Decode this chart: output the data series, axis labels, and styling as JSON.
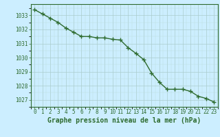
{
  "title": "Graphe pression niveau de la mer (hPa)",
  "x_values": [
    0,
    1,
    2,
    3,
    4,
    5,
    6,
    7,
    8,
    9,
    10,
    11,
    12,
    13,
    14,
    15,
    16,
    17,
    18,
    19,
    20,
    21,
    22,
    23
  ],
  "y_values": [
    1033.4,
    1033.1,
    1032.8,
    1032.5,
    1032.1,
    1031.8,
    1031.5,
    1031.5,
    1031.4,
    1031.4,
    1031.3,
    1031.25,
    1030.7,
    1030.3,
    1029.85,
    1028.9,
    1028.25,
    1027.75,
    1027.75,
    1027.75,
    1027.6,
    1027.25,
    1027.1,
    1026.85
  ],
  "line_color": "#2d6a2d",
  "marker": "+",
  "marker_size": 4,
  "linewidth": 1.0,
  "background_color": "#cceeff",
  "grid_major_color": "#aacccc",
  "grid_minor_color": "#bbdddd",
  "ylim_min": 1026.5,
  "ylim_max": 1033.8,
  "xlim_min": -0.5,
  "xlim_max": 23.5,
  "ytick_values": [
    1027,
    1028,
    1029,
    1030,
    1031,
    1032,
    1033
  ],
  "xtick_values": [
    0,
    1,
    2,
    3,
    4,
    5,
    6,
    7,
    8,
    9,
    10,
    11,
    12,
    13,
    14,
    15,
    16,
    17,
    18,
    19,
    20,
    21,
    22,
    23
  ],
  "tick_color": "#2d6a2d",
  "label_color": "#2d6a2d",
  "title_fontsize": 7,
  "tick_fontsize": 5.5
}
